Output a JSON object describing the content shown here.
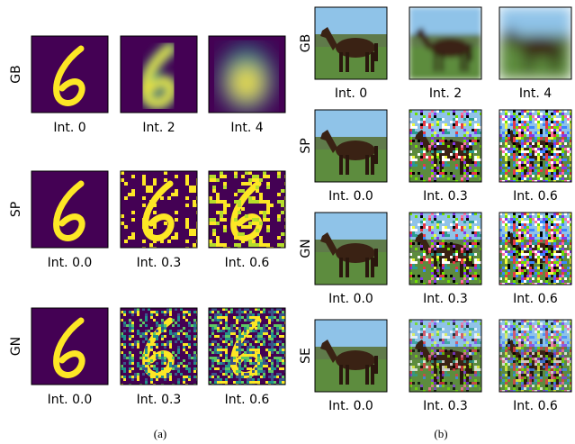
{
  "panel_a": {
    "caption": "(a)",
    "rows": [
      {
        "label": "GB",
        "images": [
          "Int. 0",
          "Int. 2",
          "Int. 4"
        ]
      },
      {
        "label": "SP",
        "images": [
          "Int. 0.0",
          "Int. 0.3",
          "Int. 0.6"
        ]
      },
      {
        "label": "GN",
        "images": [
          "Int. 0.0",
          "Int. 0.3",
          "Int. 0.6"
        ]
      }
    ]
  },
  "panel_b": {
    "caption": "(b)",
    "rows": [
      {
        "label": "GB",
        "images": [
          "Int. 0",
          "Int. 2",
          "Int. 4"
        ]
      },
      {
        "label": "SP",
        "images": [
          "Int. 0.0",
          "Int. 0.3",
          "Int. 0.6"
        ]
      },
      {
        "label": "GN",
        "images": [
          "Int. 0.0",
          "Int. 0.3",
          "Int. 0.6"
        ]
      },
      {
        "label": "SE",
        "images": [
          "Int. 0.0",
          "Int. 0.3",
          "Int. 0.6"
        ]
      }
    ]
  }
}
